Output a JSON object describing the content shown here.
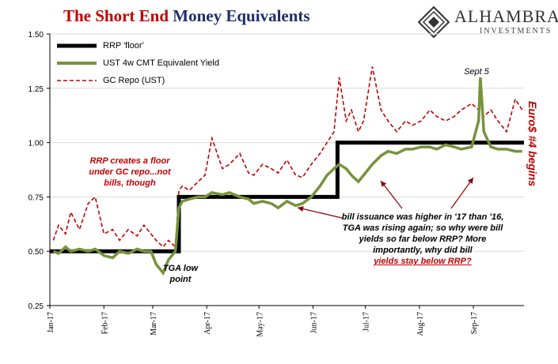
{
  "title": {
    "part1": "The Short End",
    "part2": "Money Equivalents"
  },
  "logo": {
    "name": "ALHAMBRA",
    "sub": "INVESTMENTS"
  },
  "annotations": {
    "rrp_floor": [
      "RRP creates a floor",
      "under GC repo...not",
      "bills, though"
    ],
    "tga_low": [
      "TGA low",
      "point"
    ],
    "sept5": "Sept 5",
    "bill_issuance": [
      "bill issuance was higher in '17 than '16,",
      "TGA was rising again; so why were bill",
      "yields so far below RRP? More",
      "importantly,  why did bill"
    ],
    "bill_issuance_underline": "yields stay below RRP?",
    "eurodollar": "Euro$ #4 begins"
  },
  "colors": {
    "rrp": "#000000",
    "ust": "#76933c",
    "repo": "#c00000",
    "title_red": "#c00000",
    "title_blue": "#1f2f6b"
  },
  "chart_data": {
    "type": "line",
    "ylim": [
      0.25,
      1.5
    ],
    "yticks": [
      "0.25",
      "0.50",
      "0.75",
      "1.00",
      "1.25",
      "1.50"
    ],
    "ytick_values": [
      0.25,
      0.5,
      0.75,
      1.0,
      1.25,
      1.5
    ],
    "xlim": [
      "2017-01-01",
      "2017-09-30"
    ],
    "xticks": [
      "Jan-17",
      "Feb-17",
      "Mar-17",
      "Apr-17",
      "May-17",
      "Jun-17",
      "Jul-17",
      "Aug-17",
      "Sep-17"
    ],
    "xtick_dates": [
      "2017-01-01",
      "2017-02-01",
      "2017-03-01",
      "2017-04-01",
      "2017-05-01",
      "2017-06-01",
      "2017-07-01",
      "2017-08-01",
      "2017-09-01"
    ],
    "legend_position": "top-left",
    "series": [
      {
        "name": "RRP 'floor'",
        "style": "solid-thick",
        "points": [
          [
            "2017-01-01",
            0.5
          ],
          [
            "2017-03-16",
            0.5
          ],
          [
            "2017-03-16",
            0.75
          ],
          [
            "2017-06-15",
            0.75
          ],
          [
            "2017-06-15",
            1.0
          ],
          [
            "2017-09-30",
            1.0
          ]
        ]
      },
      {
        "name": "UST 4w CMT Equivalent Yield",
        "style": "solid",
        "points": [
          [
            "2017-01-03",
            0.5
          ],
          [
            "2017-01-06",
            0.49
          ],
          [
            "2017-01-10",
            0.52
          ],
          [
            "2017-01-13",
            0.5
          ],
          [
            "2017-01-18",
            0.51
          ],
          [
            "2017-01-23",
            0.5
          ],
          [
            "2017-01-27",
            0.51
          ],
          [
            "2017-02-01",
            0.48
          ],
          [
            "2017-02-06",
            0.47
          ],
          [
            "2017-02-10",
            0.5
          ],
          [
            "2017-02-15",
            0.49
          ],
          [
            "2017-02-20",
            0.51
          ],
          [
            "2017-02-24",
            0.5
          ],
          [
            "2017-02-28",
            0.5
          ],
          [
            "2017-03-03",
            0.44
          ],
          [
            "2017-03-07",
            0.4
          ],
          [
            "2017-03-10",
            0.46
          ],
          [
            "2017-03-14",
            0.5
          ],
          [
            "2017-03-16",
            0.7
          ],
          [
            "2017-03-18",
            0.73
          ],
          [
            "2017-03-22",
            0.74
          ],
          [
            "2017-03-27",
            0.75
          ],
          [
            "2017-03-31",
            0.75
          ],
          [
            "2017-04-04",
            0.77
          ],
          [
            "2017-04-10",
            0.76
          ],
          [
            "2017-04-14",
            0.77
          ],
          [
            "2017-04-20",
            0.75
          ],
          [
            "2017-04-25",
            0.74
          ],
          [
            "2017-04-28",
            0.72
          ],
          [
            "2017-05-03",
            0.73
          ],
          [
            "2017-05-08",
            0.72
          ],
          [
            "2017-05-12",
            0.7
          ],
          [
            "2017-05-17",
            0.73
          ],
          [
            "2017-05-22",
            0.71
          ],
          [
            "2017-05-26",
            0.72
          ],
          [
            "2017-05-31",
            0.75
          ],
          [
            "2017-06-05",
            0.8
          ],
          [
            "2017-06-09",
            0.85
          ],
          [
            "2017-06-13",
            0.88
          ],
          [
            "2017-06-16",
            0.9
          ],
          [
            "2017-06-20",
            0.88
          ],
          [
            "2017-06-23",
            0.85
          ],
          [
            "2017-06-27",
            0.82
          ],
          [
            "2017-06-30",
            0.85
          ],
          [
            "2017-07-05",
            0.9
          ],
          [
            "2017-07-10",
            0.94
          ],
          [
            "2017-07-14",
            0.96
          ],
          [
            "2017-07-19",
            0.95
          ],
          [
            "2017-07-24",
            0.97
          ],
          [
            "2017-07-28",
            0.97
          ],
          [
            "2017-08-02",
            0.98
          ],
          [
            "2017-08-07",
            0.98
          ],
          [
            "2017-08-11",
            0.97
          ],
          [
            "2017-08-16",
            0.99
          ],
          [
            "2017-08-21",
            0.98
          ],
          [
            "2017-08-25",
            0.97
          ],
          [
            "2017-08-31",
            0.98
          ],
          [
            "2017-09-04",
            1.1
          ],
          [
            "2017-09-05",
            1.3
          ],
          [
            "2017-09-07",
            1.05
          ],
          [
            "2017-09-11",
            0.98
          ],
          [
            "2017-09-15",
            0.97
          ],
          [
            "2017-09-20",
            0.97
          ],
          [
            "2017-09-25",
            0.96
          ],
          [
            "2017-09-29",
            0.96
          ]
        ]
      },
      {
        "name": "GC Repo (UST)",
        "style": "dashed",
        "points": [
          [
            "2017-01-03",
            0.55
          ],
          [
            "2017-01-06",
            0.62
          ],
          [
            "2017-01-10",
            0.58
          ],
          [
            "2017-01-13",
            0.68
          ],
          [
            "2017-01-18",
            0.6
          ],
          [
            "2017-01-23",
            0.72
          ],
          [
            "2017-01-27",
            0.75
          ],
          [
            "2017-02-01",
            0.58
          ],
          [
            "2017-02-06",
            0.6
          ],
          [
            "2017-02-10",
            0.55
          ],
          [
            "2017-02-15",
            0.6
          ],
          [
            "2017-02-20",
            0.57
          ],
          [
            "2017-02-24",
            0.62
          ],
          [
            "2017-02-28",
            0.58
          ],
          [
            "2017-03-03",
            0.55
          ],
          [
            "2017-03-07",
            0.52
          ],
          [
            "2017-03-10",
            0.55
          ],
          [
            "2017-03-14",
            0.52
          ],
          [
            "2017-03-16",
            0.78
          ],
          [
            "2017-03-18",
            0.8
          ],
          [
            "2017-03-22",
            0.78
          ],
          [
            "2017-03-27",
            0.82
          ],
          [
            "2017-03-31",
            0.85
          ],
          [
            "2017-04-04",
            1.02
          ],
          [
            "2017-04-10",
            0.88
          ],
          [
            "2017-04-14",
            0.9
          ],
          [
            "2017-04-20",
            0.95
          ],
          [
            "2017-04-25",
            0.86
          ],
          [
            "2017-04-28",
            0.85
          ],
          [
            "2017-05-03",
            0.9
          ],
          [
            "2017-05-08",
            0.88
          ],
          [
            "2017-05-12",
            0.86
          ],
          [
            "2017-05-17",
            0.92
          ],
          [
            "2017-05-22",
            0.85
          ],
          [
            "2017-05-26",
            0.84
          ],
          [
            "2017-05-31",
            0.9
          ],
          [
            "2017-06-05",
            0.95
          ],
          [
            "2017-06-09",
            1.0
          ],
          [
            "2017-06-13",
            1.05
          ],
          [
            "2017-06-16",
            1.3
          ],
          [
            "2017-06-20",
            1.1
          ],
          [
            "2017-06-23",
            1.15
          ],
          [
            "2017-06-27",
            1.05
          ],
          [
            "2017-06-30",
            1.1
          ],
          [
            "2017-07-05",
            1.35
          ],
          [
            "2017-07-10",
            1.15
          ],
          [
            "2017-07-14",
            1.1
          ],
          [
            "2017-07-19",
            1.05
          ],
          [
            "2017-07-24",
            1.1
          ],
          [
            "2017-07-28",
            1.08
          ],
          [
            "2017-08-02",
            1.1
          ],
          [
            "2017-08-07",
            1.15
          ],
          [
            "2017-08-11",
            1.12
          ],
          [
            "2017-08-16",
            1.1
          ],
          [
            "2017-08-21",
            1.12
          ],
          [
            "2017-08-25",
            1.15
          ],
          [
            "2017-08-31",
            1.18
          ],
          [
            "2017-09-04",
            1.15
          ],
          [
            "2017-09-05",
            1.18
          ],
          [
            "2017-09-07",
            1.12
          ],
          [
            "2017-09-11",
            1.15
          ],
          [
            "2017-09-15",
            1.1
          ],
          [
            "2017-09-20",
            1.05
          ],
          [
            "2017-09-25",
            1.2
          ],
          [
            "2017-09-29",
            1.15
          ]
        ]
      }
    ]
  }
}
